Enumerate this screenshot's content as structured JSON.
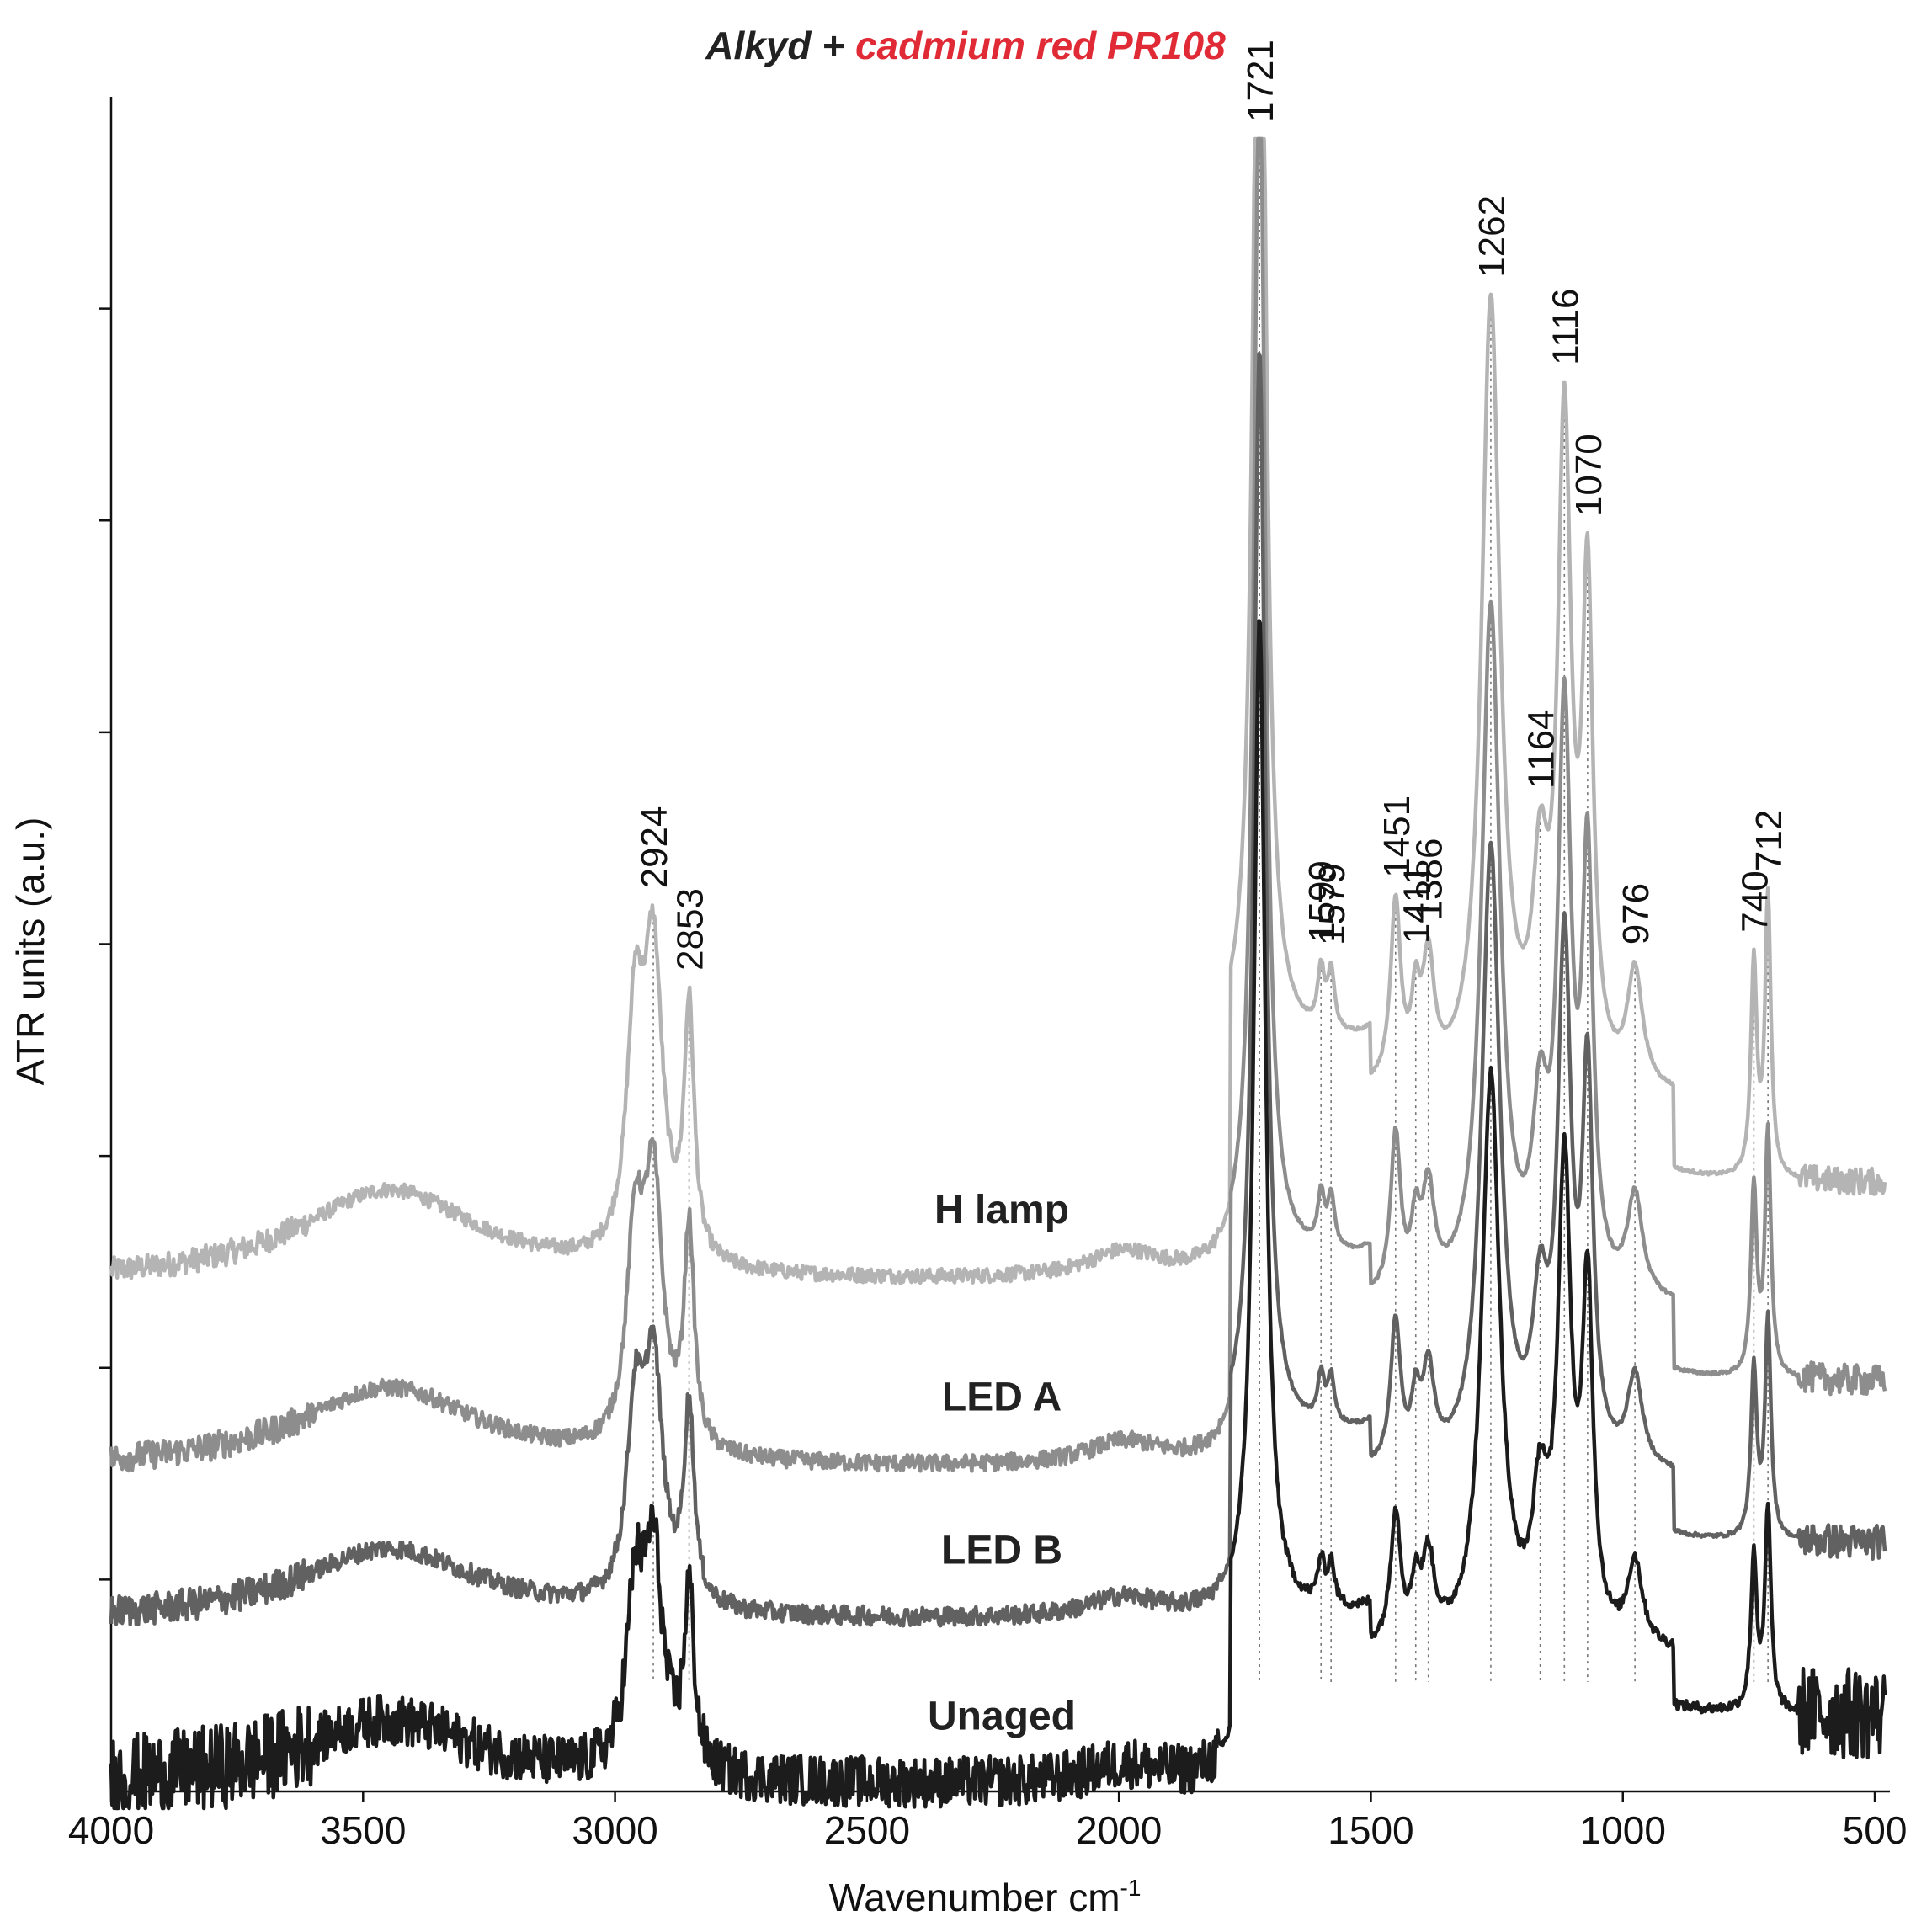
{
  "chart_data": {
    "type": "line",
    "title_parts": [
      "Alkyd + ",
      "cadmium red PR108"
    ],
    "title_colors": [
      "#222222",
      "#e02a36"
    ],
    "xlabel": "Wavenumber cm",
    "xlabel_superscript": "-1",
    "ylabel": "ATR units (a.u.)",
    "xlim": [
      4000,
      470
    ],
    "ylim": [
      0,
      8
    ],
    "x_ticks": [
      4000,
      3500,
      3000,
      2500,
      2000,
      1500,
      1000,
      500
    ],
    "x_tick_labels": [
      "4000",
      "3500",
      "3000",
      "2500",
      "2000",
      "1500",
      "1000",
      "500"
    ],
    "y_ticks": [
      1,
      2,
      3,
      4,
      5,
      6,
      7
    ],
    "series": [
      {
        "name": "H lamp",
        "color": "#b4b4b4",
        "offset": 2.4,
        "scale": 1.55,
        "noise": 0.035
      },
      {
        "name": "LED A",
        "color": "#8d8d8d",
        "offset": 1.52,
        "scale": 1.36,
        "noise": 0.04
      },
      {
        "name": "LED B",
        "color": "#616161",
        "offset": 0.8,
        "scale": 1.22,
        "noise": 0.045
      },
      {
        "name": "Unaged",
        "color": "#1c1c1c",
        "offset": 0.02,
        "scale": 1.12,
        "noise": 0.12
      }
    ],
    "spectrum_peaks": [
      [
        2960,
        0.7,
        20
      ],
      [
        2924,
        0.9,
        22
      ],
      [
        2853,
        0.75,
        12
      ],
      [
        1721,
        4.2,
        14
      ],
      [
        1599,
        0.18,
        8
      ],
      [
        1579,
        0.18,
        8
      ],
      [
        1451,
        0.55,
        12
      ],
      [
        1411,
        0.22,
        10
      ],
      [
        1386,
        0.35,
        14
      ],
      [
        1262,
        2.4,
        22
      ],
      [
        1164,
        0.55,
        18
      ],
      [
        1116,
        1.95,
        16
      ],
      [
        1070,
        1.45,
        13
      ],
      [
        976,
        0.35,
        18
      ],
      [
        740,
        0.65,
        7
      ],
      [
        712,
        0.85,
        7
      ],
      [
        3450,
        0.28,
        220
      ],
      [
        1990,
        0.08,
        90
      ]
    ],
    "peak_labels": [
      {
        "wavenumber": 2924,
        "label": "2924"
      },
      {
        "wavenumber": 2853,
        "label": "2853"
      },
      {
        "wavenumber": 1721,
        "label": "1721"
      },
      {
        "wavenumber": 1599,
        "label": "1599"
      },
      {
        "wavenumber": 1579,
        "label": "1579"
      },
      {
        "wavenumber": 1451,
        "label": "1451"
      },
      {
        "wavenumber": 1411,
        "label": "1411"
      },
      {
        "wavenumber": 1386,
        "label": "1386"
      },
      {
        "wavenumber": 1262,
        "label": "1262"
      },
      {
        "wavenumber": 1164,
        "label": "1164"
      },
      {
        "wavenumber": 1116,
        "label": "1116"
      },
      {
        "wavenumber": 1070,
        "label": "1070"
      },
      {
        "wavenumber": 976,
        "label": "976"
      },
      {
        "wavenumber": 740,
        "label": "740"
      },
      {
        "wavenumber": 712,
        "label": "712"
      }
    ]
  }
}
